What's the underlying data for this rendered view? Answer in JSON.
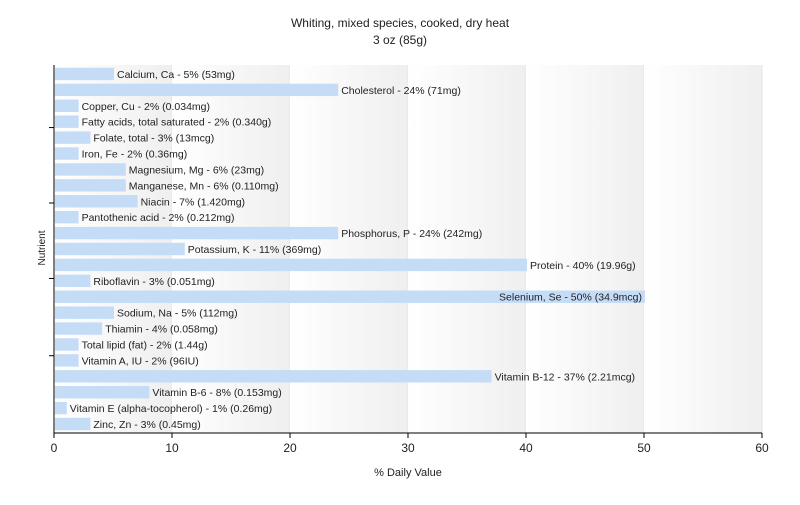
{
  "chart_data": {
    "type": "bar",
    "orientation": "horizontal",
    "title": "Whiting, mixed species, cooked, dry heat",
    "subtitle": "3 oz (85g)",
    "xlabel": "% Daily Value",
    "ylabel": "Nutrient",
    "xlim": [
      0,
      60
    ],
    "xticks": [
      "0",
      "10",
      "20",
      "30",
      "40",
      "50",
      "60"
    ],
    "grid": "vertical-bands",
    "bar_color": "#c5dcf7",
    "categories": [
      "Calcium, Ca",
      "Cholesterol",
      "Copper, Cu",
      "Fatty acids, total saturated",
      "Folate, total",
      "Iron, Fe",
      "Magnesium, Mg",
      "Manganese, Mn",
      "Niacin",
      "Pantothenic acid",
      "Phosphorus, P",
      "Potassium, K",
      "Protein",
      "Riboflavin",
      "Selenium, Se",
      "Sodium, Na",
      "Thiamin",
      "Total lipid (fat)",
      "Vitamin A, IU",
      "Vitamin B-12",
      "Vitamin B-6",
      "Vitamin E (alpha-tocopherol)",
      "Zinc, Zn"
    ],
    "values": [
      5,
      24,
      2,
      2,
      3,
      2,
      6,
      6,
      7,
      2,
      24,
      11,
      40,
      3,
      50,
      5,
      4,
      2,
      2,
      37,
      8,
      1,
      3
    ],
    "labels": [
      "Calcium, Ca - 5% (53mg)",
      "Cholesterol - 24% (71mg)",
      "Copper, Cu - 2% (0.034mg)",
      "Fatty acids, total saturated - 2% (0.340g)",
      "Folate, total - 3% (13mcg)",
      "Iron, Fe - 2% (0.36mg)",
      "Magnesium, Mg - 6% (23mg)",
      "Manganese, Mn - 6% (0.110mg)",
      "Niacin - 7% (1.420mg)",
      "Pantothenic acid - 2% (0.212mg)",
      "Phosphorus, P - 24% (242mg)",
      "Potassium, K - 11% (369mg)",
      "Protein - 40% (19.96g)",
      "Riboflavin - 3% (0.051mg)",
      "Selenium, Se - 50% (34.9mcg)",
      "Sodium, Na - 5% (112mg)",
      "Thiamin - 4% (0.058mg)",
      "Total lipid (fat) - 2% (1.44g)",
      "Vitamin A, IU - 2% (96IU)",
      "Vitamin B-12 - 37% (2.21mcg)",
      "Vitamin B-6 - 8% (0.153mg)",
      "Vitamin E (alpha-tocopherol) - 1% (0.26mg)",
      "Zinc, Zn - 3% (0.45mg)"
    ]
  }
}
